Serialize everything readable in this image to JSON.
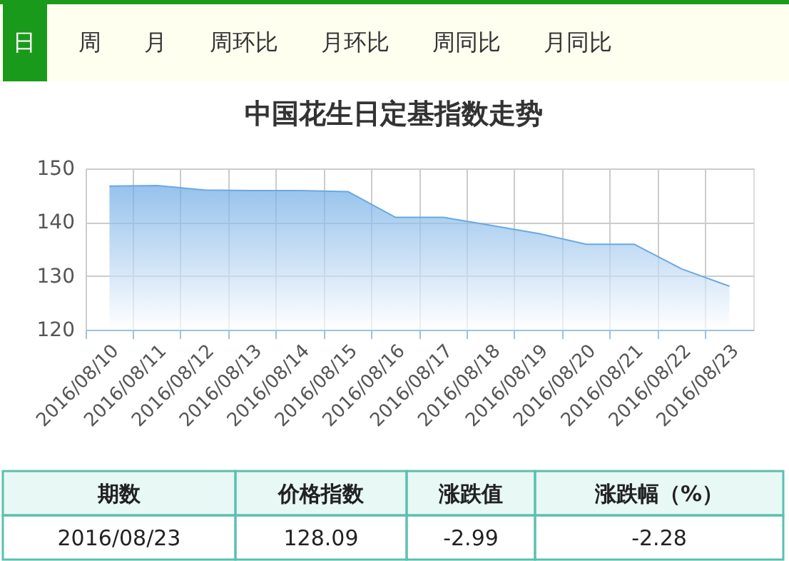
{
  "chart_data": {
    "type": "area",
    "title": "中国花生日定基指数走势",
    "categories": [
      "2016/08/10",
      "2016/08/11",
      "2016/08/12",
      "2016/08/13",
      "2016/08/14",
      "2016/08/15",
      "2016/08/16",
      "2016/08/17",
      "2016/08/18",
      "2016/08/19",
      "2016/08/20",
      "2016/08/21",
      "2016/08/22",
      "2016/08/23"
    ],
    "series": [
      {
        "color": "#6aa8e4",
        "values": [
          146.7,
          146.8,
          146.0,
          145.9,
          145.9,
          145.7,
          140.9,
          140.9,
          139.4,
          137.9,
          135.9,
          135.9,
          131.3,
          128.1
        ]
      }
    ],
    "ylim": [
      120,
      150
    ],
    "yticks": [
      120,
      130,
      140,
      150
    ],
    "grid": true,
    "annotations": [
      "日",
      "周",
      "月",
      "周环比",
      "月环比",
      "周同比",
      "月同比",
      "期数",
      "价格指数",
      "涨跌值",
      "涨跌幅（%）",
      "2016/08/23",
      "128.09",
      "-2.99",
      "-2.28"
    ]
  }
}
